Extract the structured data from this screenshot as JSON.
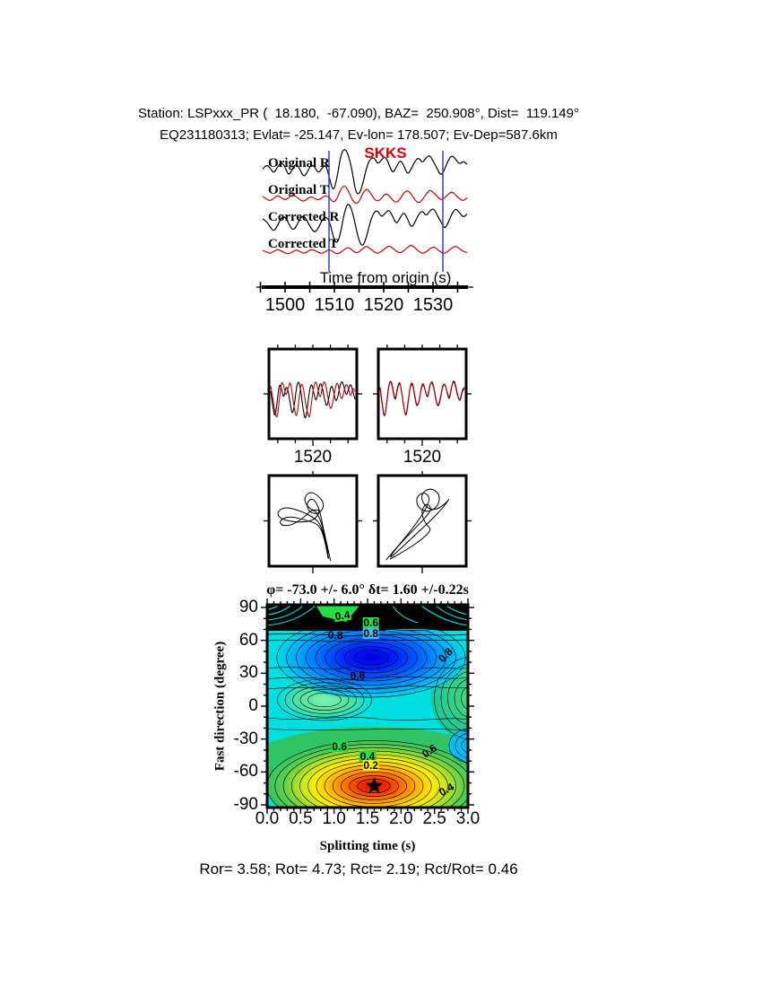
{
  "header": {
    "line1": "Station: LSPxxx_PR (  18.180,  -67.090), BAZ=  250.908°, Dist=  119.149°",
    "line2": "EQ231180313; Evlat= -25.147, Ev-lon= 178.507; Ev-Dep=587.6km"
  },
  "footer": {
    "results": "Ror= 3.58; Rot= 4.73; Rct= 2.19; Rct/Rot= 0.46"
  },
  "chart_data": [
    {
      "type": "line",
      "name": "seismogram-traces",
      "phase_label": "SKKS",
      "axis_label": "Time from origin (s)",
      "xticks": [
        "1500",
        "1510",
        "1520",
        "1530"
      ],
      "x_range_s": [
        1495,
        1536
      ],
      "window_s": [
        1509,
        1532
      ],
      "window_color": "#3344cc",
      "trace_labels": [
        "Original R",
        "Original T",
        "Corrected R",
        "Corrected T"
      ],
      "series": [
        {
          "name": "Original R",
          "color": "#000000",
          "values": [
            0.1,
            0.3,
            0.15,
            -0.1,
            0.2,
            0.4,
            0.2,
            -0.2,
            0.1,
            0.35,
            0.1,
            -0.25,
            -0.05,
            0.3,
            0.2,
            -0.1,
            0.15,
            0.3,
            -0.3,
            -0.9,
            -0.3,
            0.7,
            1.0,
            0.75,
            0.1,
            -0.9,
            -1.0,
            -0.5,
            0.2,
            0.55,
            0.6,
            0.3,
            0.5,
            0.65,
            0.3,
            -0.1,
            0.2,
            0.5,
            0.25,
            -0.15,
            0.1,
            0.45,
            0.6,
            0.35,
            0.6,
            0.7,
            0.4,
            0.1,
            -0.2,
            0.1,
            0.5,
            0.7,
            0.5,
            0.3,
            0.45,
            0.3
          ]
        },
        {
          "name": "Original T",
          "color": "#cc0000",
          "values": [
            0.0,
            -0.2,
            -0.35,
            -0.15,
            0.1,
            -0.1,
            -0.3,
            -0.1,
            0.15,
            0.0,
            -0.25,
            -0.4,
            -0.2,
            0.0,
            -0.15,
            -0.3,
            -0.1,
            0.1,
            -0.1,
            -0.5,
            -0.2,
            0.6,
            0.9,
            0.5,
            -0.2,
            -0.6,
            -0.4,
            0.3,
            0.65,
            0.3,
            -0.2,
            -0.4,
            -0.15,
            0.25,
            0.1,
            -0.3,
            -0.5,
            -0.2,
            0.3,
            0.5,
            0.2,
            -0.3,
            -0.55,
            -0.25,
            0.2,
            0.55,
            0.3,
            0.0,
            -0.3,
            -0.1,
            0.2,
            0.4,
            0.1,
            -0.2,
            -0.35,
            -0.1
          ]
        },
        {
          "name": "Corrected R",
          "color": "#000000",
          "values": [
            0.2,
            0.1,
            -0.15,
            -0.35,
            -0.1,
            0.25,
            0.3,
            0.0,
            -0.3,
            -0.15,
            0.2,
            0.35,
            0.1,
            -0.2,
            -0.4,
            -0.2,
            0.15,
            0.3,
            0.1,
            -0.6,
            -0.9,
            -0.4,
            0.5,
            0.9,
            0.6,
            -0.1,
            -0.8,
            -1.0,
            -0.55,
            0.1,
            0.5,
            0.55,
            0.25,
            0.45,
            0.6,
            0.3,
            -0.05,
            0.25,
            0.5,
            0.2,
            -0.2,
            0.05,
            0.4,
            0.55,
            0.3,
            0.55,
            0.65,
            0.35,
            0.05,
            -0.25,
            0.05,
            0.45,
            0.65,
            0.45,
            0.25,
            0.4
          ]
        },
        {
          "name": "Corrected T",
          "color": "#cc0000",
          "values": [
            0.0,
            -0.15,
            -0.3,
            -0.1,
            0.1,
            -0.05,
            -0.25,
            -0.35,
            -0.15,
            0.05,
            -0.1,
            -0.3,
            -0.15,
            0.1,
            0.0,
            -0.2,
            -0.3,
            -0.1,
            0.1,
            -0.15,
            -0.35,
            -0.2,
            0.1,
            0.3,
            0.05,
            -0.25,
            -0.15,
            0.2,
            0.4,
            0.15,
            -0.15,
            -0.3,
            -0.1,
            0.2,
            0.45,
            0.2,
            -0.1,
            -0.25,
            -0.05,
            0.3,
            0.5,
            0.25,
            -0.1,
            -0.3,
            -0.15,
            0.15,
            0.35,
            0.1,
            -0.2,
            -0.3,
            -0.05,
            0.25,
            0.4,
            0.15,
            -0.1,
            -0.2
          ]
        }
      ]
    },
    {
      "type": "line",
      "name": "waveform-comparison",
      "panels": [
        {
          "xtick": "1520",
          "series": [
            {
              "name": "fast",
              "color": "#000000",
              "values": [
                0.1,
                -0.5,
                -0.9,
                -0.3,
                0.4,
                0.2,
                -0.2,
                0.3,
                0.15,
                -0.35,
                -0.8,
                -0.4,
                0.3,
                0.5,
                0.1,
                -0.6,
                -1.0,
                -0.5,
                0.2,
                0.4,
                0.0,
                -0.3,
                0.1,
                0.45,
                0.2,
                -0.25,
                -0.5,
                -0.1,
                0.35,
                0.15,
                -0.3,
                -0.15,
                0.3,
                0.5,
                0.25,
                -0.1,
                0.2,
                0.4,
                0.1,
                -0.2
              ]
            },
            {
              "name": "slow",
              "color": "#cc0000",
              "values": [
                0.3,
                -0.2,
                -0.7,
                -0.95,
                -0.2,
                0.5,
                0.3,
                -0.1,
                0.2,
                0.5,
                0.0,
                -0.6,
                -0.9,
                -0.3,
                0.4,
                0.3,
                -0.3,
                -0.7,
                -0.95,
                -0.2,
                0.3,
                0.5,
                0.1,
                -0.2,
                0.35,
                0.5,
                0.1,
                -0.4,
                -0.6,
                -0.2,
                0.3,
                0.45,
                0.0,
                -0.25,
                0.15,
                0.4,
                0.2,
                -0.15,
                0.25,
                0.1
              ]
            }
          ]
        },
        {
          "xtick": "1520",
          "series": [
            {
              "name": "fast",
              "color": "#000000",
              "values": [
                0.2,
                -0.4,
                -0.95,
                -0.4,
                0.35,
                0.5,
                0.1,
                -0.3,
                0.2,
                0.45,
                0.1,
                -0.55,
                -0.85,
                -0.3,
                0.3,
                0.4,
                -0.1,
                -0.5,
                -0.3,
                0.2,
                0.4,
                0.1,
                -0.2,
                0.3,
                0.5,
                0.2,
                -0.3,
                -0.5,
                -0.15,
                0.3,
                0.4,
                0.05,
                -0.25,
                0.2,
                0.55,
                0.3,
                -0.1,
                -0.3,
                0.1,
                0.2
              ]
            },
            {
              "name": "slow",
              "color": "#cc0000",
              "values": [
                0.25,
                -0.35,
                -0.9,
                -0.45,
                0.3,
                0.55,
                0.15,
                -0.25,
                0.25,
                0.5,
                0.05,
                -0.5,
                -0.9,
                -0.35,
                0.35,
                0.45,
                -0.05,
                -0.45,
                -0.35,
                0.25,
                0.45,
                0.05,
                -0.15,
                0.35,
                0.45,
                0.15,
                -0.35,
                -0.45,
                -0.1,
                0.35,
                0.35,
                0.1,
                -0.2,
                0.25,
                0.5,
                0.25,
                -0.15,
                -0.25,
                0.15,
                0.25
              ]
            }
          ]
        }
      ]
    },
    {
      "type": "scatter",
      "name": "particle-motion",
      "panels": [
        {
          "points": [
            [
              0.72,
              0.98
            ],
            [
              0.62,
              0.55
            ],
            [
              0.58,
              0.35
            ],
            [
              0.5,
              0.22
            ],
            [
              0.42,
              0.28
            ],
            [
              0.45,
              0.4
            ],
            [
              0.58,
              0.42
            ],
            [
              0.65,
              0.3
            ],
            [
              0.55,
              0.18
            ],
            [
              0.45,
              0.15
            ],
            [
              0.38,
              0.25
            ],
            [
              0.48,
              0.38
            ],
            [
              0.6,
              0.36
            ],
            [
              0.52,
              0.5
            ],
            [
              0.3,
              0.52
            ],
            [
              0.1,
              0.48
            ],
            [
              0.05,
              0.4
            ],
            [
              0.15,
              0.33
            ],
            [
              0.35,
              0.38
            ],
            [
              0.55,
              0.48
            ],
            [
              0.62,
              0.6
            ],
            [
              0.66,
              0.8
            ],
            [
              0.7,
              0.99
            ],
            [
              0.68,
              0.85
            ],
            [
              0.63,
              0.6
            ],
            [
              0.58,
              0.45
            ],
            [
              0.5,
              0.35
            ],
            [
              0.4,
              0.45
            ],
            [
              0.25,
              0.55
            ],
            [
              0.12,
              0.56
            ],
            [
              0.08,
              0.5
            ],
            [
              0.2,
              0.44
            ],
            [
              0.45,
              0.5
            ],
            [
              0.58,
              0.55
            ],
            [
              0.64,
              0.7
            ],
            [
              0.69,
              0.95
            ]
          ]
        },
        {
          "points": [
            [
              0.05,
              0.97
            ],
            [
              0.25,
              0.75
            ],
            [
              0.45,
              0.5
            ],
            [
              0.55,
              0.35
            ],
            [
              0.6,
              0.22
            ],
            [
              0.52,
              0.15
            ],
            [
              0.42,
              0.22
            ],
            [
              0.45,
              0.35
            ],
            [
              0.58,
              0.4
            ],
            [
              0.7,
              0.32
            ],
            [
              0.72,
              0.18
            ],
            [
              0.6,
              0.1
            ],
            [
              0.48,
              0.18
            ],
            [
              0.52,
              0.32
            ],
            [
              0.65,
              0.38
            ],
            [
              0.78,
              0.3
            ],
            [
              0.85,
              0.22
            ],
            [
              0.75,
              0.35
            ],
            [
              0.6,
              0.5
            ],
            [
              0.4,
              0.68
            ],
            [
              0.18,
              0.88
            ],
            [
              0.08,
              0.96
            ],
            [
              0.2,
              0.8
            ],
            [
              0.4,
              0.6
            ],
            [
              0.55,
              0.45
            ],
            [
              0.62,
              0.35
            ],
            [
              0.55,
              0.28
            ],
            [
              0.48,
              0.4
            ],
            [
              0.55,
              0.55
            ],
            [
              0.62,
              0.6
            ],
            [
              0.5,
              0.72
            ],
            [
              0.3,
              0.85
            ],
            [
              0.1,
              0.96
            ]
          ]
        }
      ]
    },
    {
      "type": "contour",
      "name": "splitting-misfit",
      "title": "φ= -73.0 +/- 6.0° δt= 1.60 +/-0.22s",
      "xlabel": "Splitting time (s)",
      "ylabel": "Fast direction (degree)",
      "xlim": [
        0,
        3
      ],
      "ylim": [
        -90,
        90
      ],
      "xticks": [
        "0.0",
        "0.5",
        "1.0",
        "1.5",
        "2.0",
        "2.5",
        "3.0"
      ],
      "yticks": [
        "90",
        "60",
        "30",
        "0",
        "-30",
        "-60",
        "-90"
      ],
      "best_fit": {
        "fast_direction_deg": -73.0,
        "fast_direction_err_deg": 6.0,
        "delay_time_s": 1.6,
        "delay_time_err_s": 0.22,
        "marker": "star"
      },
      "contour_levels_labeled": [
        0.2,
        0.4,
        0.6,
        0.8
      ],
      "features": {
        "maximum_red_star": {
          "dt_s": 1.6,
          "phi_deg": -73
        },
        "minimum_blue": {
          "dt_s": 1.55,
          "phi_deg": 45
        },
        "local_low_green": {
          "dt_s": 0.85,
          "phi_deg": 6
        }
      },
      "colors": {
        "background": "#00dfe0",
        "minimum": "#0000d8",
        "maximum": "#e80000",
        "label_box_green": "#22dd44",
        "label_box_yellow": "#ffee00",
        "label_box_blue": "#49b7f2"
      },
      "level_labels": [
        {
          "text": "0.4",
          "dt": 1.13,
          "phi": 83,
          "bg": "#22dd44",
          "rot": -8
        },
        {
          "text": "0.6",
          "dt": 1.55,
          "phi": 76,
          "bg": "#22dd44",
          "rot": 0
        },
        {
          "text": "0.8",
          "dt": 1.55,
          "phi": 66,
          "bg": "#49b7f2",
          "rot": 0
        },
        {
          "text": "0.8",
          "dt": 1.02,
          "phi": 65,
          "bg": "",
          "rot": 0
        },
        {
          "text": "0.8",
          "dt": 2.66,
          "phi": 47,
          "bg": "",
          "rot": -45
        },
        {
          "text": "0.8",
          "dt": 1.35,
          "phi": 28,
          "bg": "",
          "rot": -5
        },
        {
          "text": "0.6",
          "dt": 1.08,
          "phi": -37,
          "bg": "#22dd44",
          "rot": 0
        },
        {
          "text": "0.6",
          "dt": 2.42,
          "phi": -41,
          "bg": "",
          "rot": -35
        },
        {
          "text": "0.4",
          "dt": 1.5,
          "phi": -46,
          "bg": "#22dd44",
          "rot": 0
        },
        {
          "text": "0.2",
          "dt": 1.55,
          "phi": -54,
          "bg": "#ffee00",
          "rot": 0
        },
        {
          "text": "0.4",
          "dt": 2.68,
          "phi": -76,
          "bg": "",
          "rot": -30
        }
      ]
    }
  ]
}
